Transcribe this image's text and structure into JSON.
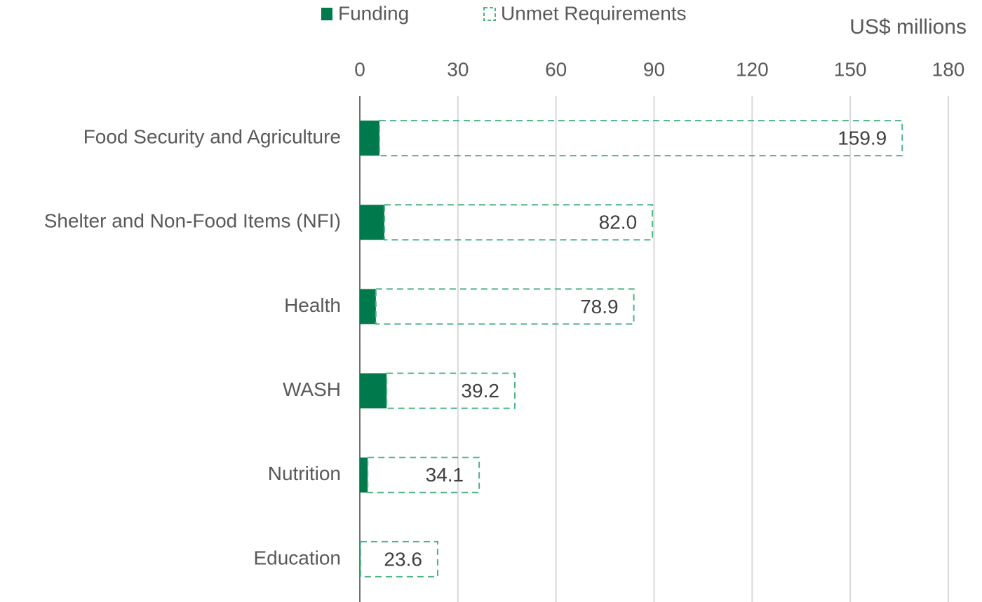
{
  "chart_data": {
    "type": "stacked-bar",
    "orientation": "horizontal",
    "axis_label": "US$ millions",
    "categories": [
      "Food Security and Agriculture",
      "Shelter and Non-Food Items (NFI)",
      "Health",
      "WASH",
      "Nutrition",
      "Education"
    ],
    "series": [
      {
        "name": "Funding",
        "color": "#007a4d",
        "style": "solid",
        "values": [
          6.0,
          7.5,
          4.9,
          8.2,
          2.4,
          0.2
        ]
      },
      {
        "name": "Unmet Requirements",
        "color": "#4db383",
        "style": "dashed",
        "values": [
          159.9,
          82.0,
          78.9,
          39.2,
          34.1,
          23.6
        ],
        "value_labels": [
          "159.9",
          "82.0",
          "78.9",
          "39.2",
          "34.1",
          "23.6"
        ]
      }
    ],
    "xlim": [
      0,
      180
    ],
    "xticks": [
      0,
      30,
      60,
      90,
      120,
      150,
      180
    ],
    "grid": true,
    "legend": "top"
  }
}
